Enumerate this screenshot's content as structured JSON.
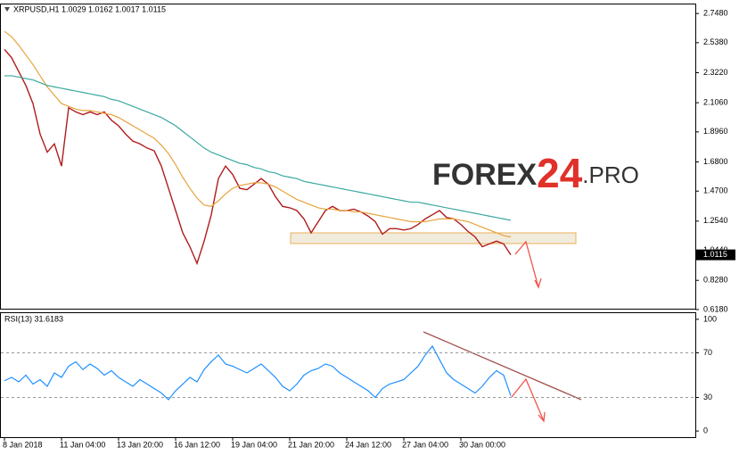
{
  "watermark": [
    "FOREX",
    "24",
    ".PRO"
  ],
  "chart_data": [
    {
      "type": "line",
      "title": "XRPUSD,H1  1.0029 1.0162 1.0017 1.0115",
      "ylim": [
        0.624,
        2.813
      ],
      "yticks": [
        {
          "value": 2.748,
          "label": "2.7480"
        },
        {
          "value": 2.538,
          "label": "2.5380"
        },
        {
          "value": 2.322,
          "label": "2.3220"
        },
        {
          "value": 2.106,
          "label": "2.1060"
        },
        {
          "value": 1.896,
          "label": "1.8960"
        },
        {
          "value": 1.68,
          "label": "1.6800"
        },
        {
          "value": 1.47,
          "label": "1.4700"
        },
        {
          "value": 1.254,
          "label": "1.2540"
        },
        {
          "value": 1.044,
          "label": "1.0440"
        },
        {
          "value": 0.828,
          "label": "0.8280"
        },
        {
          "value": 0.618,
          "label": "0.6180"
        }
      ],
      "last_price": {
        "value": 1.0115,
        "label": "1.0115"
      },
      "series": [
        {
          "color": "#b01c1c",
          "values": [
            2.49,
            2.43,
            2.33,
            2.23,
            2.1,
            1.88,
            1.75,
            1.81,
            1.65,
            2.07,
            2.04,
            2.02,
            2.04,
            2.02,
            2.04,
            1.98,
            1.94,
            1.88,
            1.83,
            1.81,
            1.78,
            1.76,
            1.65,
            1.49,
            1.33,
            1.17,
            1.07,
            0.95,
            1.11,
            1.3,
            1.56,
            1.65,
            1.59,
            1.49,
            1.48,
            1.52,
            1.56,
            1.52,
            1.43,
            1.36,
            1.35,
            1.33,
            1.27,
            1.17,
            1.25,
            1.33,
            1.36,
            1.33,
            1.33,
            1.34,
            1.32,
            1.29,
            1.25,
            1.16,
            1.2,
            1.2,
            1.19,
            1.2,
            1.23,
            1.27,
            1.3,
            1.33,
            1.28,
            1.27,
            1.23,
            1.18,
            1.14,
            1.07,
            1.09,
            1.11,
            1.09,
            1.0115
          ]
        },
        {
          "color": "#e8a33c",
          "values": [
            2.62,
            2.58,
            2.52,
            2.45,
            2.38,
            2.3,
            2.22,
            2.16,
            2.1,
            2.08,
            2.06,
            2.05,
            2.05,
            2.04,
            2.03,
            2.02,
            2.0,
            1.97,
            1.94,
            1.91,
            1.88,
            1.85,
            1.8,
            1.74,
            1.66,
            1.57,
            1.49,
            1.42,
            1.37,
            1.36,
            1.4,
            1.45,
            1.49,
            1.51,
            1.52,
            1.53,
            1.53,
            1.52,
            1.5,
            1.47,
            1.44,
            1.41,
            1.39,
            1.37,
            1.35,
            1.34,
            1.34,
            1.33,
            1.33,
            1.32,
            1.32,
            1.31,
            1.3,
            1.29,
            1.28,
            1.27,
            1.26,
            1.25,
            1.25,
            1.25,
            1.26,
            1.27,
            1.27,
            1.27,
            1.26,
            1.25,
            1.23,
            1.21,
            1.19,
            1.17,
            1.15,
            1.14
          ]
        },
        {
          "color": "#3aa8a0",
          "values": [
            2.3,
            2.3,
            2.29,
            2.28,
            2.27,
            2.25,
            2.23,
            2.22,
            2.21,
            2.2,
            2.19,
            2.18,
            2.17,
            2.16,
            2.15,
            2.13,
            2.12,
            2.1,
            2.08,
            2.06,
            2.04,
            2.02,
            2.0,
            1.97,
            1.94,
            1.9,
            1.86,
            1.82,
            1.78,
            1.75,
            1.73,
            1.71,
            1.69,
            1.67,
            1.66,
            1.64,
            1.63,
            1.61,
            1.6,
            1.58,
            1.57,
            1.56,
            1.54,
            1.53,
            1.52,
            1.51,
            1.5,
            1.49,
            1.48,
            1.47,
            1.46,
            1.45,
            1.44,
            1.43,
            1.42,
            1.41,
            1.4,
            1.39,
            1.39,
            1.38,
            1.37,
            1.36,
            1.35,
            1.34,
            1.33,
            1.32,
            1.31,
            1.3,
            1.29,
            1.28,
            1.27,
            1.26
          ]
        }
      ]
    },
    {
      "type": "line",
      "title": "RSI(13) 31.6183",
      "ylim": [
        -5.5,
        105.5
      ],
      "yticks": [
        100,
        70,
        30,
        0
      ],
      "levels": [
        70,
        30
      ],
      "categories": [
        "8 Jan 2018",
        null,
        null,
        null,
        null,
        null,
        null,
        null,
        "11 Jan 04:00",
        null,
        null,
        null,
        null,
        null,
        null,
        null,
        "13 Jan 20:00",
        null,
        null,
        null,
        null,
        null,
        null,
        null,
        "16 Jan 12:00",
        null,
        null,
        null,
        null,
        null,
        null,
        null,
        "19 Jan 04:00",
        null,
        null,
        null,
        null,
        null,
        null,
        null,
        "21 Jan 20:00",
        null,
        null,
        null,
        null,
        null,
        null,
        null,
        "24 Jan 12:00",
        null,
        null,
        null,
        null,
        null,
        null,
        null,
        "27 Jan 04:00",
        null,
        null,
        null,
        null,
        null,
        null,
        null,
        "30 Jan 00:00",
        null,
        null,
        null,
        null,
        null,
        null,
        null
      ],
      "series": [
        {
          "color": "#1e90ff",
          "values": [
            45,
            48,
            44,
            50,
            42,
            46,
            40,
            52,
            48,
            58,
            62,
            55,
            60,
            56,
            50,
            54,
            48,
            44,
            40,
            46,
            42,
            38,
            34,
            28,
            36,
            42,
            48,
            44,
            55,
            62,
            68,
            60,
            58,
            55,
            52,
            56,
            60,
            54,
            48,
            40,
            36,
            42,
            50,
            54,
            56,
            60,
            58,
            52,
            48,
            44,
            40,
            36,
            30,
            38,
            42,
            44,
            46,
            52,
            58,
            68,
            76,
            64,
            52,
            46,
            42,
            38,
            34,
            40,
            48,
            54,
            50,
            31.6183
          ]
        }
      ]
    }
  ]
}
